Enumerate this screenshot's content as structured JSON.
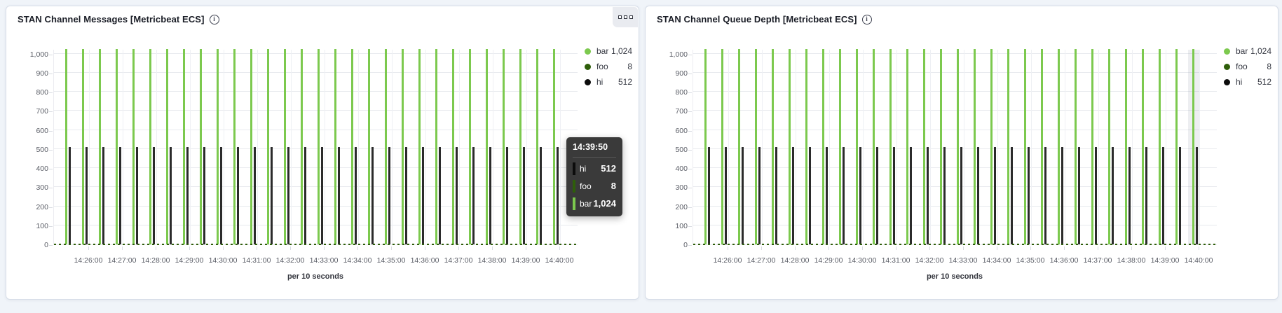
{
  "page": {
    "background_color": "#f0f4f9"
  },
  "panels": [
    {
      "title": "STAN Channel Messages [Metricbeat ECS]",
      "info_icon": "info-circle",
      "options_button": {
        "visible": true,
        "icon": "boxed-ellipsis"
      },
      "legend": {
        "position": "right",
        "items": [
          {
            "label": "bar",
            "value": "1,024",
            "color": "#7cc94e"
          },
          {
            "label": "foo",
            "value": "8",
            "color": "#2e5e0a"
          },
          {
            "label": "hi",
            "value": "512",
            "color": "#0c0c0c"
          }
        ]
      },
      "tooltip": {
        "visible": true,
        "time": "14:39:50",
        "rows": [
          {
            "label": "hi",
            "value": "512",
            "color": "#0c0c0c"
          },
          {
            "label": "foo",
            "value": "8",
            "color": "#2e5e0a"
          },
          {
            "label": "bar",
            "value": "1,024",
            "color": "#7cc94e"
          }
        ]
      },
      "hover_band_last_group": false,
      "chart_data": {
        "type": "bar",
        "title": "",
        "xlabel": "per 10 seconds",
        "ylabel": "",
        "ylim": [
          0,
          1024
        ],
        "grid": true,
        "legend_position": "right",
        "x_ticks": [
          "14:26:00",
          "14:27:00",
          "14:28:00",
          "14:29:00",
          "14:30:00",
          "14:31:00",
          "14:32:00",
          "14:33:00",
          "14:34:00",
          "14:35:00",
          "14:36:00",
          "14:37:00",
          "14:38:00",
          "14:39:00",
          "14:40:00"
        ],
        "y_ticks": [
          {
            "label": "0",
            "value": 0
          },
          {
            "label": "100",
            "value": 100
          },
          {
            "label": "200",
            "value": 200
          },
          {
            "label": "300",
            "value": 300
          },
          {
            "label": "400",
            "value": 400
          },
          {
            "label": "500",
            "value": 500
          },
          {
            "label": "600",
            "value": 600
          },
          {
            "label": "700",
            "value": 700
          },
          {
            "label": "800",
            "value": 800
          },
          {
            "label": "900",
            "value": 900
          },
          {
            "label": "1,000",
            "value": 1000
          }
        ],
        "bucket_interval_seconds": 10,
        "group_count": 30,
        "series": [
          {
            "name": "bar",
            "color": "#7cc94e",
            "value": 1024,
            "repeat_every_seconds": 30,
            "offset_in_group_seconds": 0,
            "style": "bar"
          },
          {
            "name": "hi",
            "color": "#2b2b2b",
            "value": 512,
            "repeat_every_seconds": 30,
            "offset_in_group_seconds": 10,
            "style": "bar"
          },
          {
            "name": "foo",
            "color": "#2e5e0a",
            "value": 8,
            "repeat_every_seconds": 10,
            "offset_in_group_seconds": 0,
            "style": "baseline-dashes"
          }
        ]
      }
    },
    {
      "title": "STAN Channel Queue Depth [Metricbeat ECS]",
      "info_icon": "info-circle",
      "options_button": {
        "visible": false,
        "icon": "boxed-ellipsis"
      },
      "legend": {
        "position": "right",
        "items": [
          {
            "label": "bar",
            "value": "1,024",
            "color": "#7cc94e"
          },
          {
            "label": "foo",
            "value": "8",
            "color": "#2e5e0a"
          },
          {
            "label": "hi",
            "value": "512",
            "color": "#0c0c0c"
          }
        ]
      },
      "tooltip": {
        "visible": false
      },
      "hover_band_last_group": true,
      "chart_data": {
        "type": "bar",
        "title": "",
        "xlabel": "per 10 seconds",
        "ylabel": "",
        "ylim": [
          0,
          1024
        ],
        "grid": true,
        "legend_position": "right",
        "x_ticks": [
          "14:26:00",
          "14:27:00",
          "14:28:00",
          "14:29:00",
          "14:30:00",
          "14:31:00",
          "14:32:00",
          "14:33:00",
          "14:34:00",
          "14:35:00",
          "14:36:00",
          "14:37:00",
          "14:38:00",
          "14:39:00",
          "14:40:00"
        ],
        "y_ticks": [
          {
            "label": "0",
            "value": 0
          },
          {
            "label": "100",
            "value": 100
          },
          {
            "label": "200",
            "value": 200
          },
          {
            "label": "300",
            "value": 300
          },
          {
            "label": "400",
            "value": 400
          },
          {
            "label": "500",
            "value": 500
          },
          {
            "label": "600",
            "value": 600
          },
          {
            "label": "700",
            "value": 700
          },
          {
            "label": "800",
            "value": 800
          },
          {
            "label": "900",
            "value": 900
          },
          {
            "label": "1,000",
            "value": 1000
          }
        ],
        "bucket_interval_seconds": 10,
        "group_count": 30,
        "series": [
          {
            "name": "bar",
            "color": "#7cc94e",
            "value": 1024,
            "repeat_every_seconds": 30,
            "offset_in_group_seconds": 0,
            "style": "bar"
          },
          {
            "name": "hi",
            "color": "#2b2b2b",
            "value": 512,
            "repeat_every_seconds": 30,
            "offset_in_group_seconds": 10,
            "style": "bar"
          },
          {
            "name": "foo",
            "color": "#2e5e0a",
            "value": 8,
            "repeat_every_seconds": 10,
            "offset_in_group_seconds": 0,
            "style": "baseline-dashes"
          }
        ]
      }
    }
  ]
}
